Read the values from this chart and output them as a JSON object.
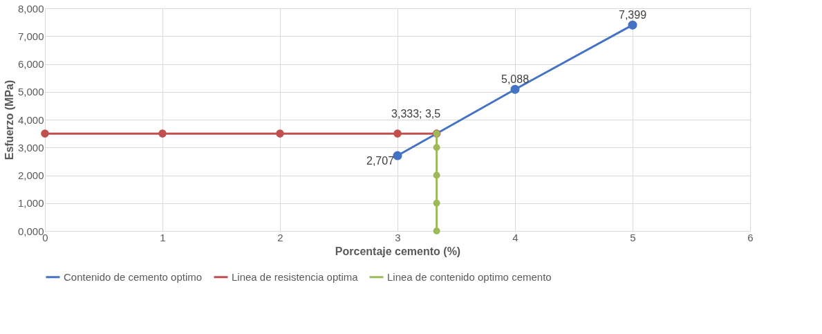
{
  "chart_data": {
    "type": "line",
    "xlabel": "Porcentaje cemento (%)",
    "ylabel": "Esfuerzo (MPa)",
    "xlim": [
      0,
      6
    ],
    "xticks": [
      0,
      1,
      2,
      3,
      4,
      5,
      6
    ],
    "ylim": [
      0,
      8
    ],
    "yticks": [
      {
        "value": 0,
        "label": "0,000"
      },
      {
        "value": 1,
        "label": "1,000"
      },
      {
        "value": 2,
        "label": "2,000"
      },
      {
        "value": 3,
        "label": "3,000"
      },
      {
        "value": 4,
        "label": "4,000"
      },
      {
        "value": 5,
        "label": "5,000"
      },
      {
        "value": 6,
        "label": "6,000"
      },
      {
        "value": 7,
        "label": "7,000"
      },
      {
        "value": 8,
        "label": "8,000"
      }
    ],
    "grid": true,
    "legend": "bottom",
    "marker": "circle",
    "line_style": "solid",
    "series": [
      {
        "name": "Contenido de cemento optimo",
        "color": "#4472c4",
        "x": [
          3,
          4,
          5
        ],
        "values": [
          2.707,
          5.088,
          7.399
        ],
        "value_labels": [
          "2,707",
          "5,088",
          "7,399"
        ]
      },
      {
        "name": "Linea de resistencia optima",
        "color": "#c0504d",
        "x": [
          0,
          1,
          2,
          3,
          3.333
        ],
        "values": [
          3.5,
          3.5,
          3.5,
          3.5,
          3.5
        ]
      },
      {
        "name": "Linea de contenido optimo cemento",
        "color": "#9bbb59",
        "x": [
          3.333,
          3.333,
          3.333,
          3.333,
          3.333
        ],
        "values": [
          0,
          1,
          2,
          3,
          3.5
        ]
      }
    ],
    "annotations": [
      {
        "text": "3,333; 3,5",
        "x": 3.333,
        "y": 3.5
      }
    ]
  }
}
